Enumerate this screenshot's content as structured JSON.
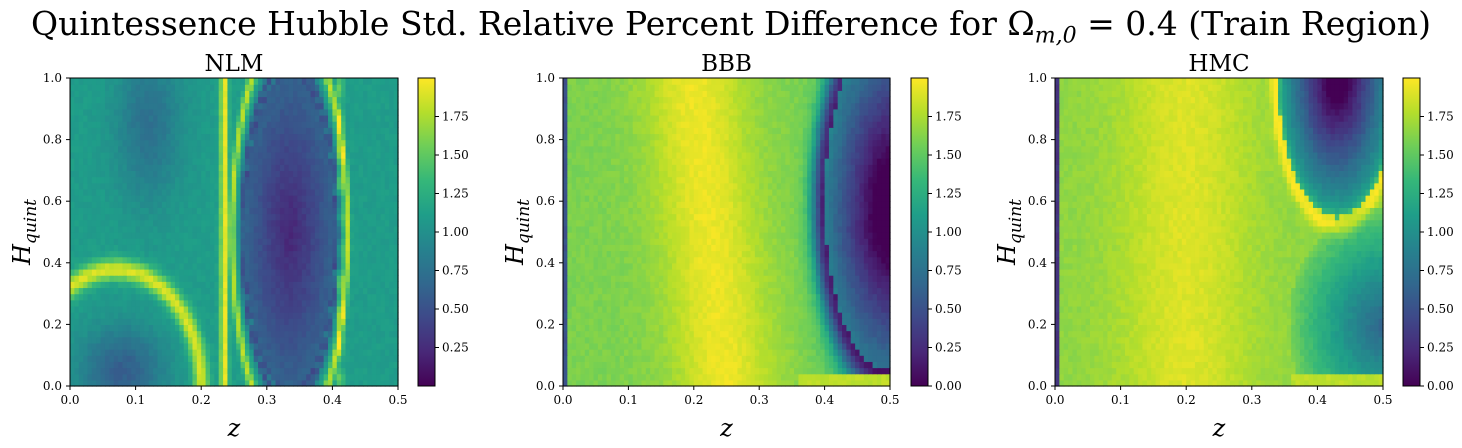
{
  "figure": {
    "title": "Quintessence Hubble Std. Relative Percent Difference for Ω",
    "title_sub": "m,0",
    "title_tail": " = 0.4 (Train Region)"
  },
  "colormap": {
    "name": "viridis",
    "stops": [
      "#440154",
      "#482878",
      "#3e4989",
      "#31688e",
      "#26828e",
      "#1f9e89",
      "#35b779",
      "#6ece58",
      "#b5de2b",
      "#fde725"
    ]
  },
  "chart_data": [
    {
      "type": "heatmap",
      "title": "NLM",
      "xlabel": "z",
      "ylabel": "H",
      "ylabel_sub": "quint",
      "xlim": [
        0.0,
        0.5
      ],
      "ylim": [
        0.0,
        1.0
      ],
      "xticks": [
        "0.0",
        "0.1",
        "0.2",
        "0.3",
        "0.4",
        "0.5"
      ],
      "yticks": [
        "0.0",
        "0.2",
        "0.4",
        "0.6",
        "0.8",
        "1.0"
      ],
      "colorbar_range": [
        0.0,
        2.0
      ],
      "colorbar_ticks": [
        "0.25",
        "0.50",
        "0.75",
        "1.00",
        "1.25",
        "1.50",
        "1.75"
      ],
      "grid": false
    },
    {
      "type": "heatmap",
      "title": "BBB",
      "xlabel": "z",
      "ylabel": "H",
      "ylabel_sub": "quint",
      "xlim": [
        0.0,
        0.5
      ],
      "ylim": [
        0.0,
        1.0
      ],
      "xticks": [
        "0.0",
        "0.1",
        "0.2",
        "0.3",
        "0.4",
        "0.5"
      ],
      "yticks": [
        "0.0",
        "0.2",
        "0.4",
        "0.6",
        "0.8",
        "1.0"
      ],
      "colorbar_range": [
        0.0,
        2.0
      ],
      "colorbar_ticks": [
        "0.00",
        "0.25",
        "0.50",
        "0.75",
        "1.00",
        "1.25",
        "1.50",
        "1.75"
      ],
      "grid": false
    },
    {
      "type": "heatmap",
      "title": "HMC",
      "xlabel": "z",
      "ylabel": "H",
      "ylabel_sub": "quint",
      "xlim": [
        0.0,
        0.5
      ],
      "ylim": [
        0.0,
        1.0
      ],
      "xticks": [
        "0.0",
        "0.1",
        "0.2",
        "0.3",
        "0.4",
        "0.5"
      ],
      "yticks": [
        "0.0",
        "0.2",
        "0.4",
        "0.6",
        "0.8",
        "1.0"
      ],
      "colorbar_range": [
        0.0,
        2.0
      ],
      "colorbar_ticks": [
        "0.00",
        "0.25",
        "0.50",
        "0.75",
        "1.00",
        "1.25",
        "1.50",
        "1.75"
      ],
      "grid": false
    }
  ]
}
